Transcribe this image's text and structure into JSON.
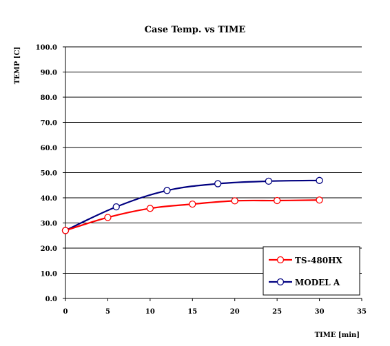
{
  "chart_data": {
    "type": "line",
    "title": "Case Temp. vs TIME",
    "xlabel": "TIME [min]",
    "ylabel": "TEMP [C]",
    "xlim": [
      0,
      35
    ],
    "ylim": [
      0,
      100
    ],
    "x_ticks": [
      0,
      5,
      10,
      15,
      20,
      25,
      30,
      35
    ],
    "x_tick_labels": [
      "0",
      "5",
      "10",
      "15",
      "20",
      "25",
      "30",
      "35"
    ],
    "y_ticks": [
      0,
      10,
      20,
      30,
      40,
      50,
      60,
      70,
      80,
      90,
      100
    ],
    "y_tick_labels": [
      "0.0",
      "10.0",
      "20.0",
      "30.0",
      "40.0",
      "50.0",
      "60.0",
      "70.0",
      "80.0",
      "90.0",
      "100.0"
    ],
    "grid": {
      "horizontal": true,
      "vertical": false
    },
    "legend_position": "bottom-right",
    "series": [
      {
        "name": "TS-480HX",
        "color": "#ff0000",
        "x": [
          0,
          5,
          10,
          15,
          20,
          25,
          30
        ],
        "y": [
          27.0,
          32.2,
          35.8,
          37.5,
          38.8,
          38.9,
          39.1
        ]
      },
      {
        "name": "MODEL A",
        "color": "#000080",
        "x": [
          0,
          6,
          12,
          18,
          24,
          30
        ],
        "y": [
          27.0,
          36.4,
          42.9,
          45.6,
          46.6,
          46.9
        ]
      }
    ]
  }
}
